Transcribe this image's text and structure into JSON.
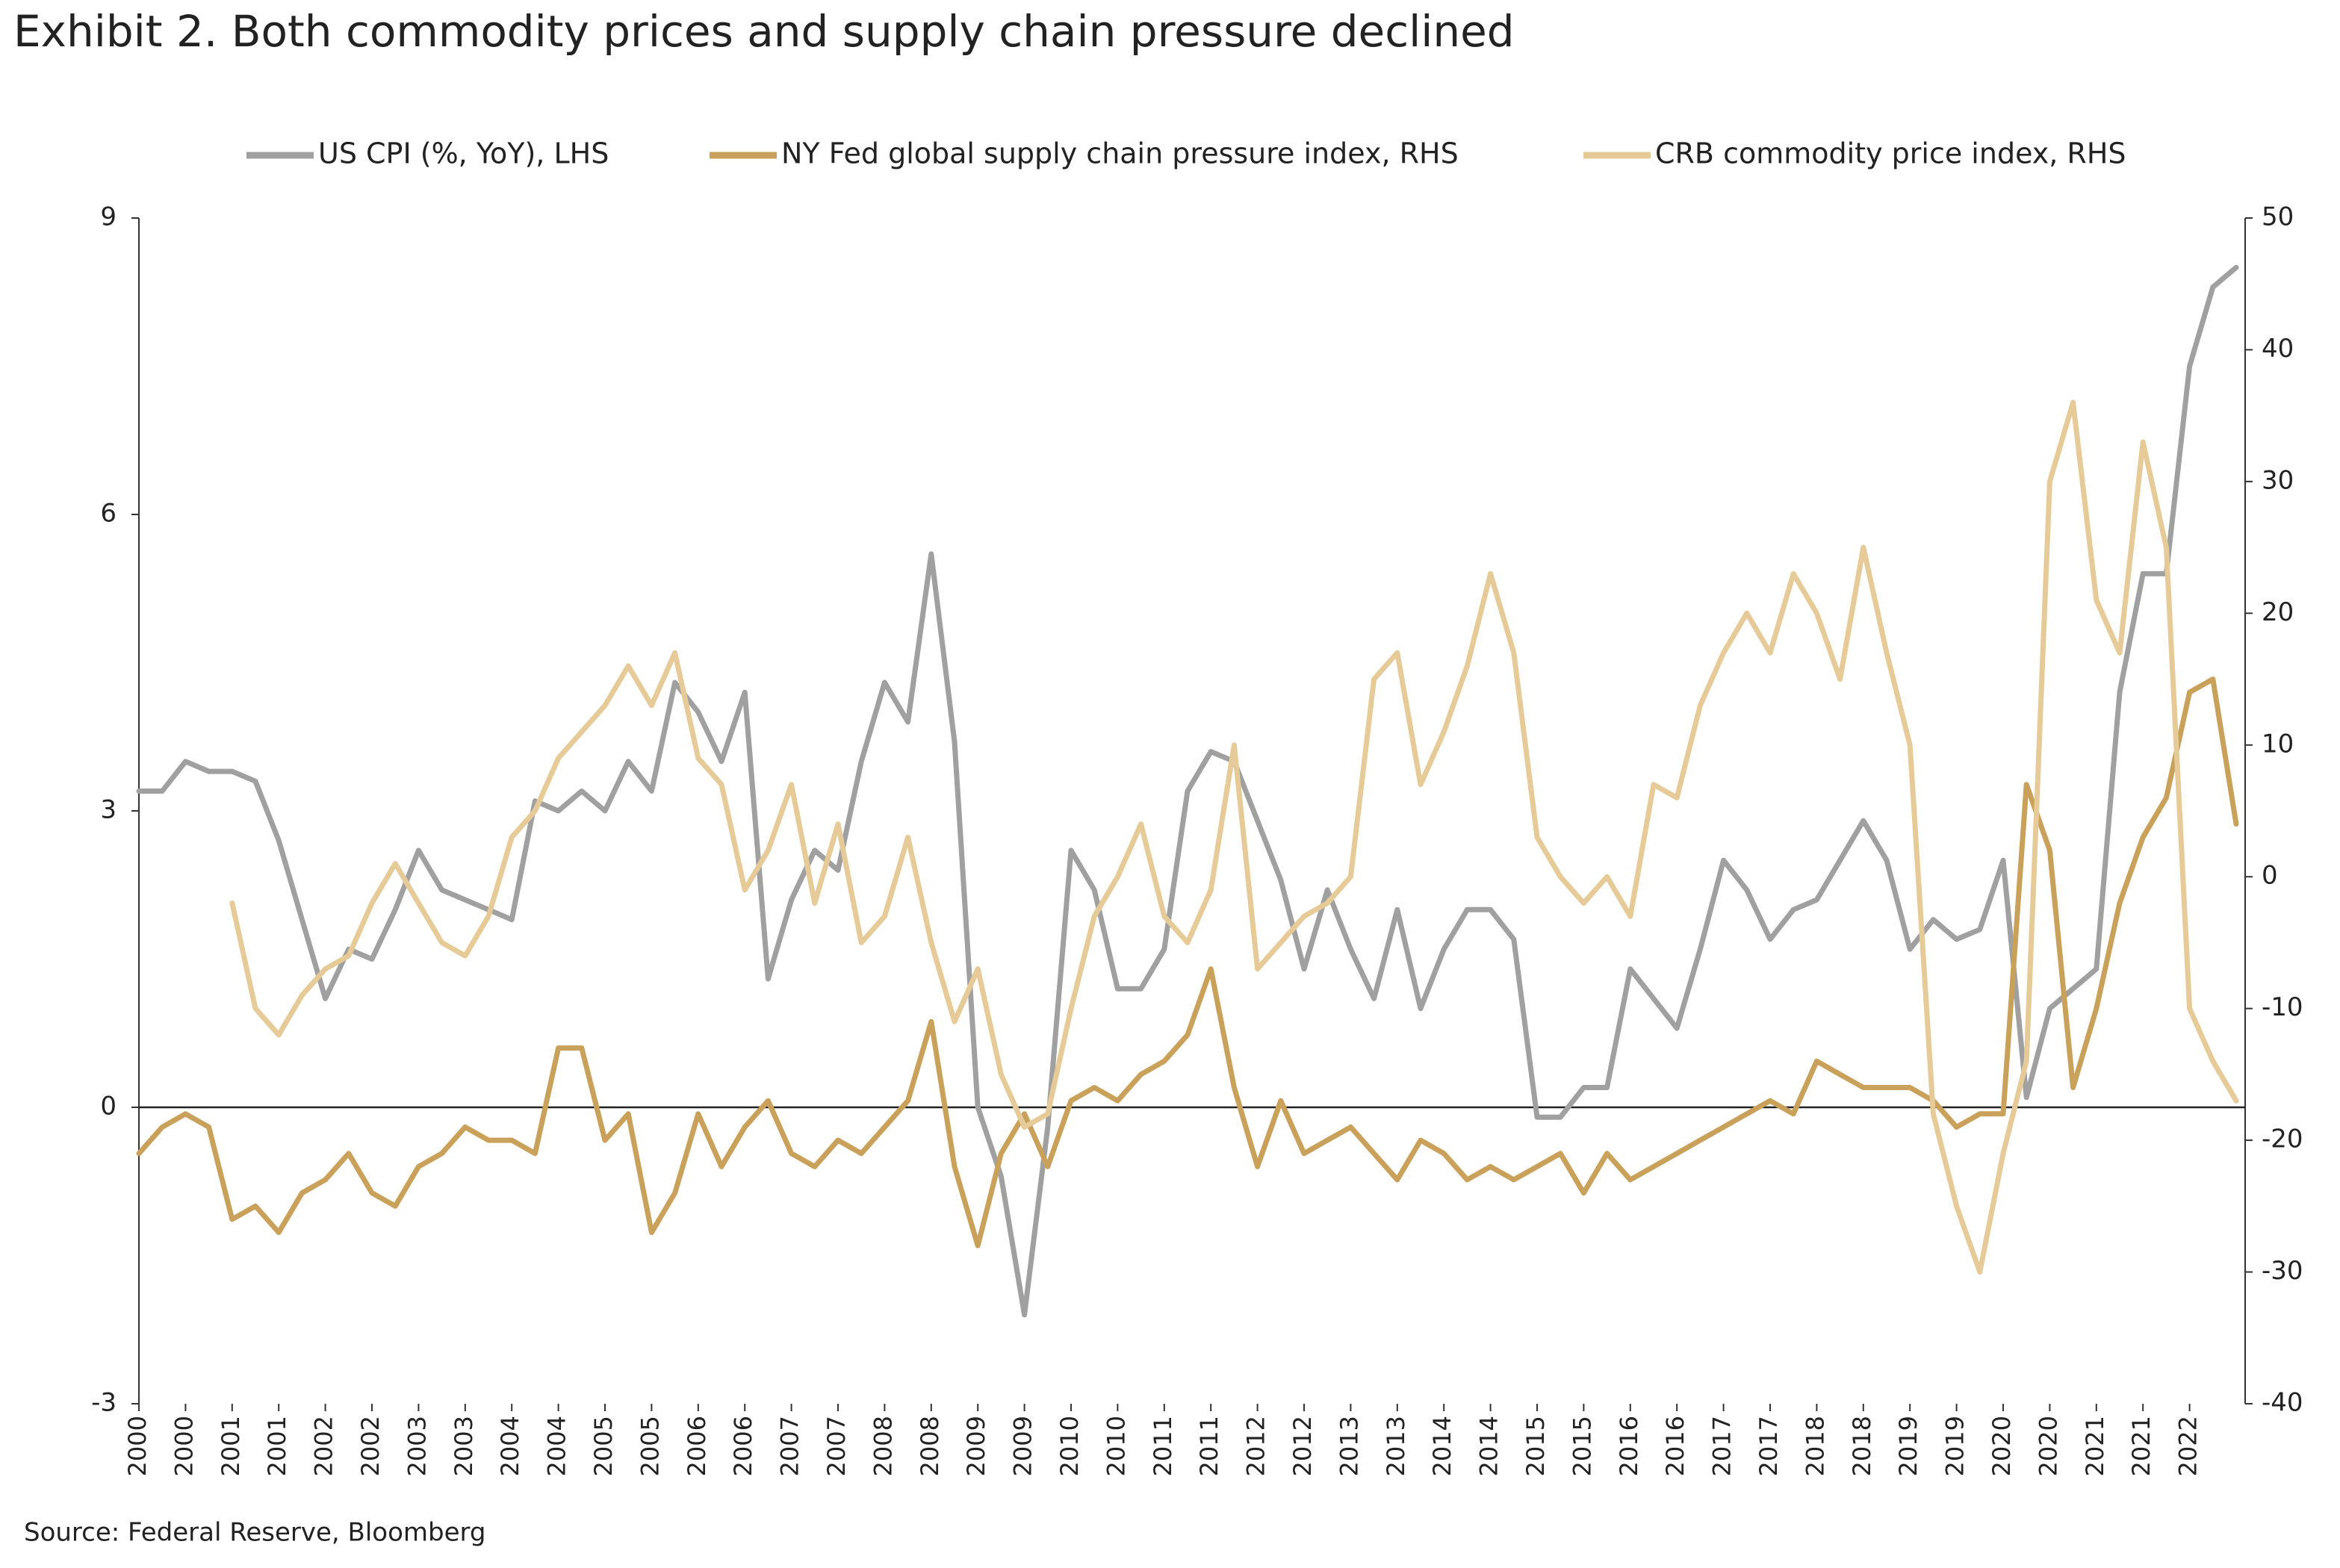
{
  "chart_data": {
    "type": "line",
    "title": "Exhibit 2. Both commodity prices and supply chain pressure declined",
    "source": "Source: Federal Reserve, Bloomberg",
    "categories": [
      "2000",
      null,
      "2000",
      null,
      "2001",
      null,
      "2001",
      null,
      "2002",
      null,
      "2002",
      null,
      "2003",
      null,
      "2003",
      null,
      "2004",
      null,
      "2004",
      null,
      "2005",
      null,
      "2005",
      null,
      "2006",
      null,
      "2006",
      null,
      "2007",
      null,
      "2007",
      null,
      "2008",
      null,
      "2008",
      null,
      "2009",
      null,
      "2009",
      null,
      "2010",
      null,
      "2010",
      null,
      "2011",
      null,
      "2011",
      null,
      "2012",
      null,
      "2012",
      null,
      "2013",
      null,
      "2013",
      null,
      "2014",
      null,
      "2014",
      null,
      "2015",
      null,
      "2015",
      null,
      "2016",
      null,
      "2016",
      null,
      "2017",
      null,
      "2017",
      null,
      "2018",
      null,
      "2018",
      null,
      "2019",
      null,
      "2019",
      null,
      "2020",
      null,
      "2020",
      null,
      "2021",
      null,
      "2021",
      null,
      "2022",
      null,
      null
    ],
    "ylim": [
      -3,
      9
    ],
    "yticks": [
      -3,
      0,
      3,
      6,
      9
    ],
    "y2lim": [
      -40,
      50
    ],
    "y2ticks": [
      -40,
      -30,
      -20,
      -10,
      0,
      10,
      20,
      30,
      40,
      50
    ],
    "legend": "top",
    "series": [
      {
        "name": "US CPI (%, YoY), LHS",
        "color": "#a0a0a0",
        "axis": "y",
        "values": [
          3.2,
          3.2,
          3.5,
          3.4,
          3.4,
          3.3,
          2.7,
          1.9,
          1.1,
          1.6,
          1.5,
          2.0,
          2.6,
          2.2,
          2.1,
          2.0,
          1.9,
          3.1,
          3.0,
          3.2,
          3.0,
          3.5,
          3.2,
          4.3,
          4.0,
          3.5,
          4.2,
          1.3,
          2.1,
          2.6,
          2.4,
          3.5,
          4.3,
          3.9,
          5.6,
          3.7,
          0.0,
          -0.7,
          -2.1,
          -0.2,
          2.6,
          2.2,
          1.2,
          1.2,
          1.6,
          3.2,
          3.6,
          3.5,
          2.9,
          2.3,
          1.4,
          2.2,
          1.6,
          1.1,
          2.0,
          1.0,
          1.6,
          2.0,
          2.0,
          1.7,
          -0.1,
          -0.1,
          0.2,
          0.2,
          1.4,
          1.1,
          0.8,
          1.6,
          2.5,
          2.2,
          1.7,
          2.0,
          2.1,
          2.5,
          2.9,
          2.5,
          1.6,
          1.9,
          1.7,
          1.8,
          2.5,
          0.1,
          1.0,
          1.2,
          1.4,
          4.2,
          5.4,
          5.4,
          7.5,
          8.3,
          8.5
        ]
      },
      {
        "name": "NY Fed global supply chain pressure index, RHS",
        "color": "#c9a15a",
        "axis": "y2",
        "values": [
          -21,
          -19,
          -18,
          -19,
          -26,
          -25,
          -27,
          -24,
          -23,
          -21,
          -24,
          -25,
          -22,
          -21,
          -19,
          -20,
          -20,
          -21,
          -13,
          -13,
          -20,
          -18,
          -27,
          -24,
          -18,
          -22,
          -19,
          -17,
          -21,
          -22,
          -20,
          -21,
          -19,
          -17,
          -11,
          -22,
          -28,
          -21,
          -18,
          -22,
          -17,
          -16,
          -17,
          -15,
          -14,
          -12,
          -7,
          -16,
          -22,
          -17,
          -21,
          -20,
          -19,
          -21,
          -23,
          -20,
          -21,
          -23,
          -22,
          -23,
          -22,
          -21,
          -24,
          -21,
          -23,
          -22,
          -21,
          -20,
          -19,
          -18,
          -17,
          -18,
          -14,
          -15,
          -16,
          -16,
          -16,
          -17,
          -19,
          -18,
          -18,
          7,
          2,
          -16,
          -10,
          -2,
          3,
          6,
          14,
          15,
          4
        ]
      },
      {
        "name": "CRB commodity price index, RHS",
        "color": "#e6cb98",
        "axis": "y2",
        "values": [
          null,
          null,
          null,
          null,
          -2,
          -10,
          -12,
          -9,
          -7,
          -6,
          -2,
          1,
          -2,
          -5,
          -6,
          -3,
          3,
          5,
          9,
          11,
          13,
          16,
          13,
          17,
          9,
          7,
          -1,
          2,
          7,
          -2,
          4,
          -5,
          -3,
          3,
          -5,
          -11,
          -7,
          -15,
          -19,
          -18,
          -10,
          -3,
          0,
          4,
          -3,
          -5,
          -1,
          10,
          -7,
          -5,
          -3,
          -2,
          0,
          15,
          17,
          7,
          11,
          16,
          23,
          17,
          3,
          0,
          -2,
          0,
          -3,
          7,
          6,
          13,
          17,
          20,
          17,
          23,
          20,
          15,
          25,
          17,
          10,
          -18,
          -25,
          -30,
          -21,
          -14,
          30,
          36,
          21,
          17,
          33,
          25,
          -10,
          -14,
          -17
        ]
      }
    ]
  }
}
